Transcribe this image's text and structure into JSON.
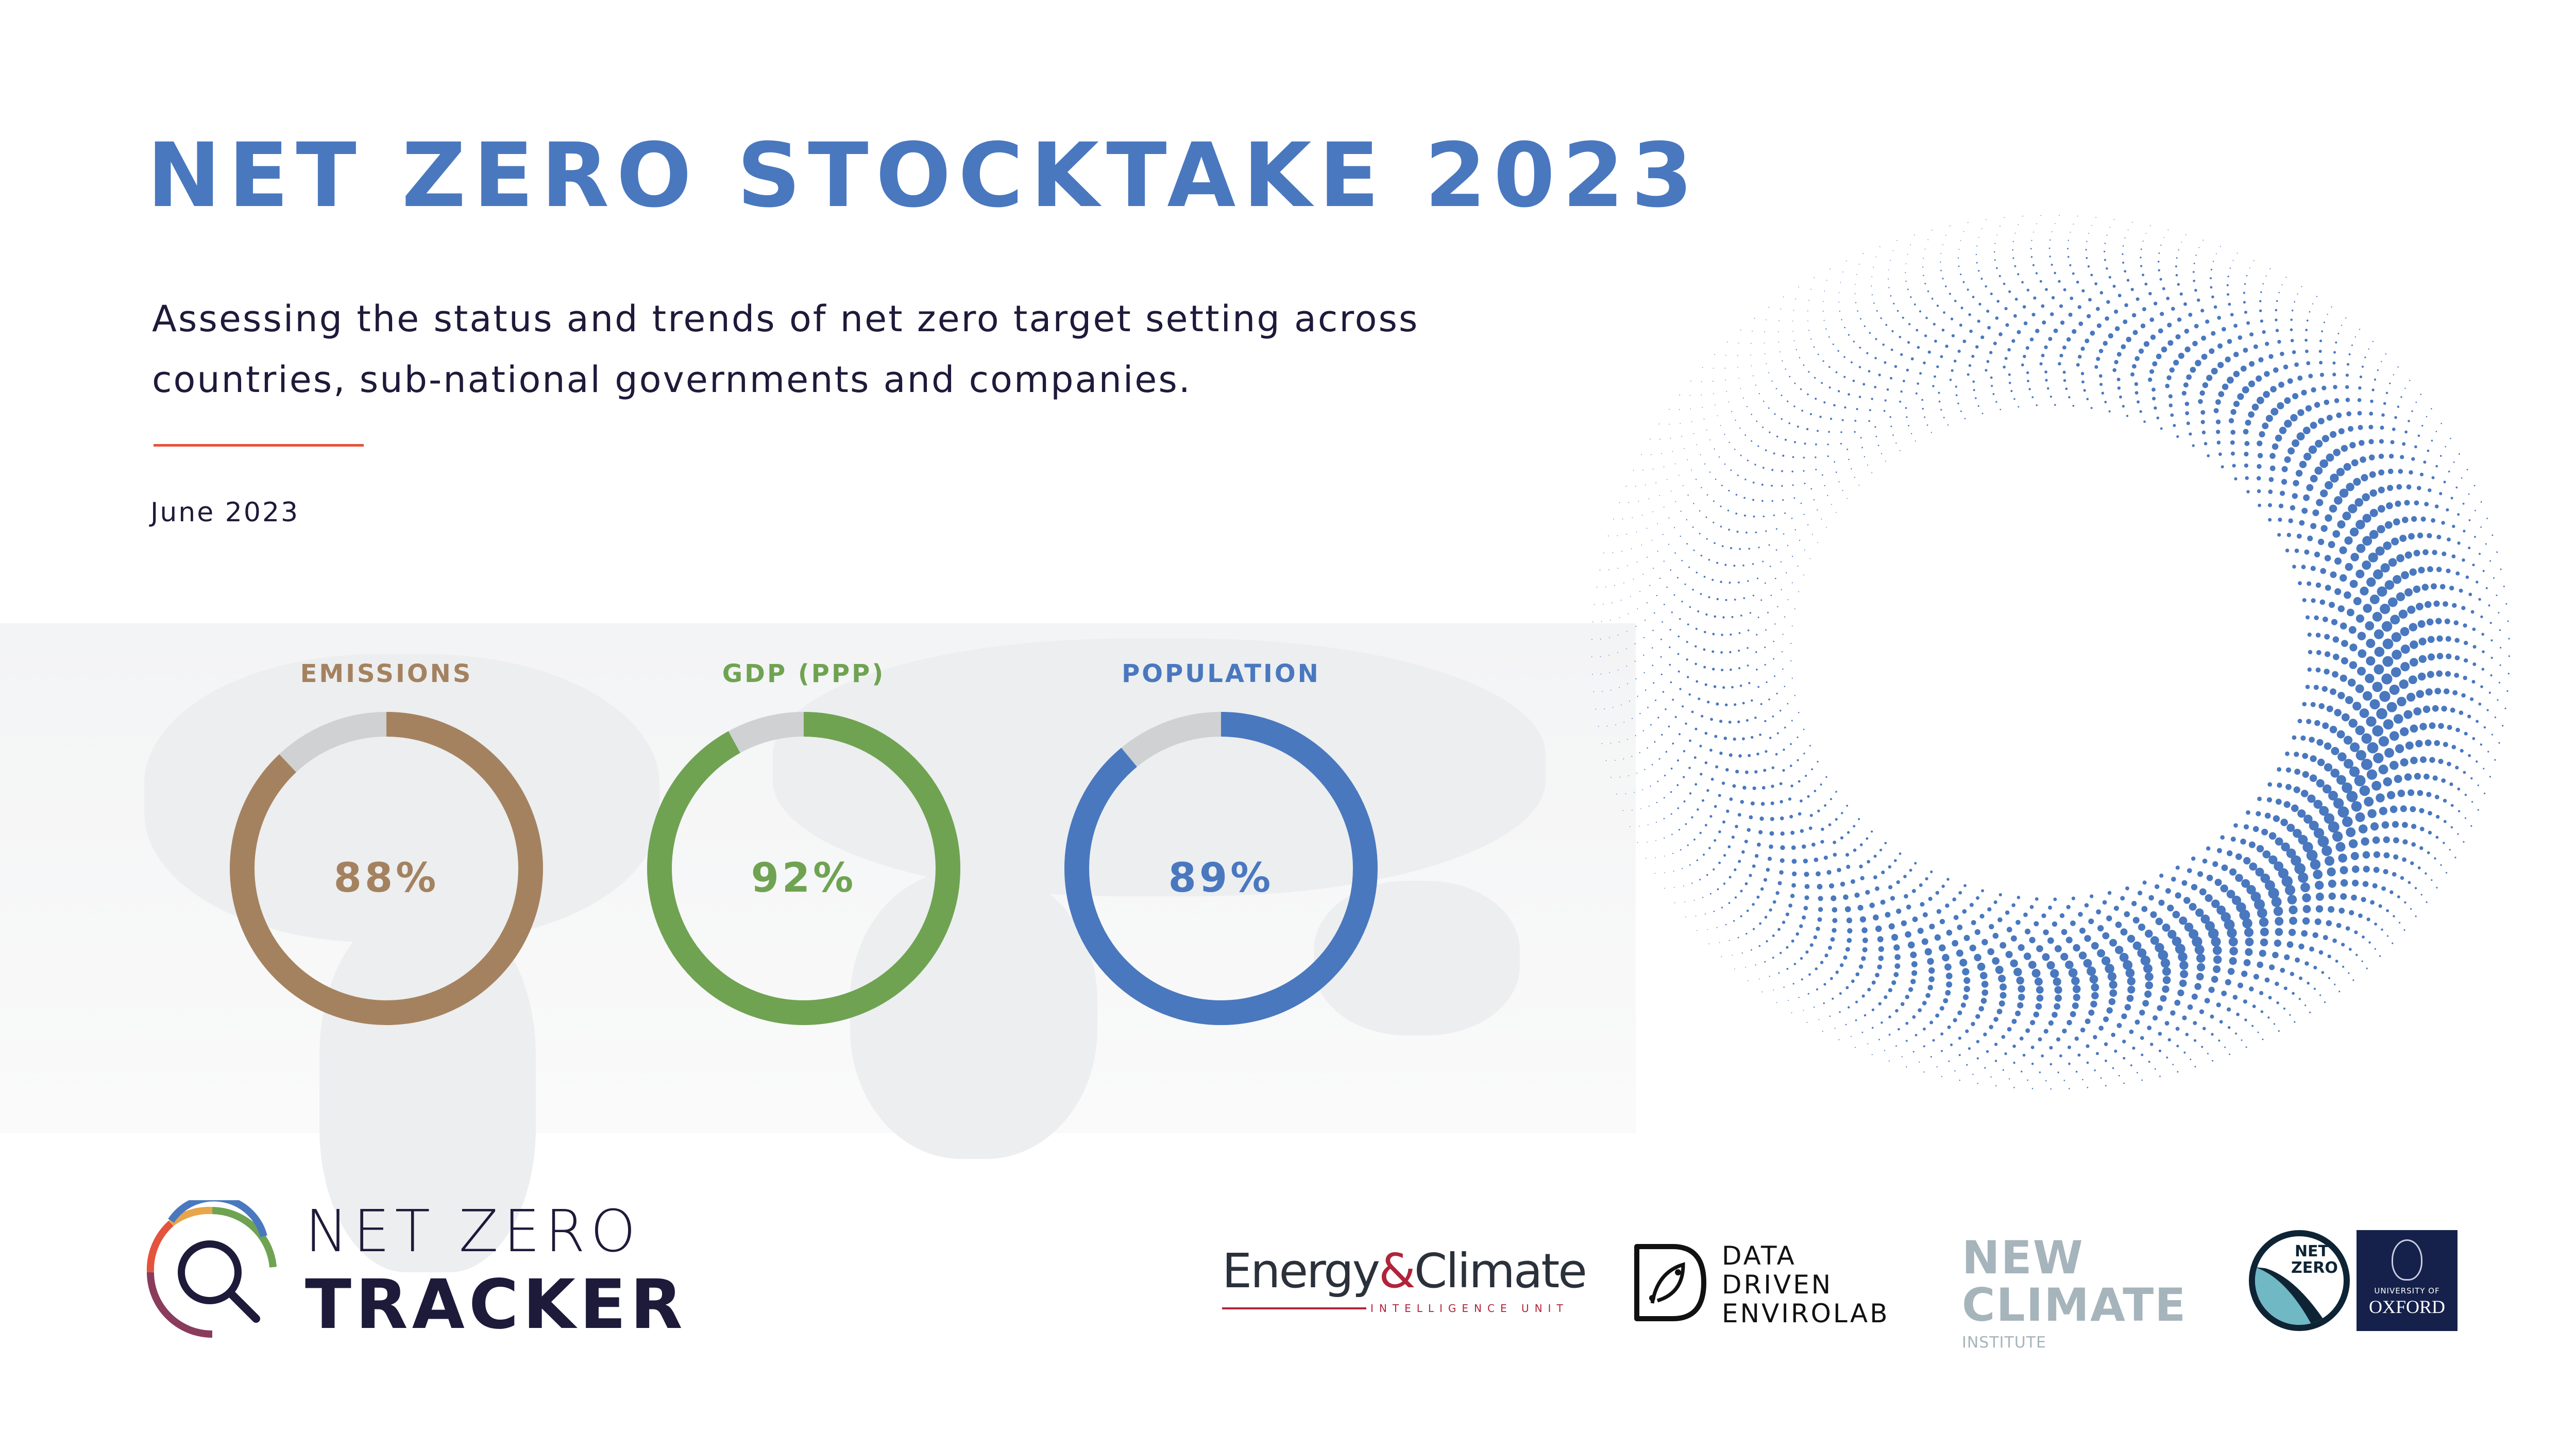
{
  "header": {
    "title": "NET ZERO STOCKTAKE 2023",
    "subtitle": "Assessing the status and trends of net zero target setting across countries, sub-national governments and companies.",
    "date": "June 2023",
    "accent_color": "#4a78bf",
    "rule_color": "#e4533c"
  },
  "donuts": [
    {
      "label": "EMISSIONS",
      "percent_text": "88%",
      "value": 88,
      "color": "#a5825f"
    },
    {
      "label": "GDP (PPP)",
      "percent_text": "92%",
      "value": 92,
      "color": "#6fa352"
    },
    {
      "label": "POPULATION",
      "percent_text": "89%",
      "value": 89,
      "color": "#4a78bf"
    }
  ],
  "donut_remainder_color": "#d0d1d3",
  "logos": {
    "nzt_line1": "NET ZERO",
    "nzt_line2": "TRACKER",
    "ec_main": "Energy",
    "ec_amp": "&",
    "ec_main2": "Climate",
    "ec_sub": "INTELLIGENCE UNIT",
    "ddl_lines": [
      "DATA",
      "DRIVEN",
      "ENVIROLAB"
    ],
    "nci_line1": "NEW",
    "nci_line2": "CLIMATE",
    "nci_sub": "INSTITUTE",
    "nz_badge": "NET ZERO",
    "ox_line1": "UNIVERSITY OF",
    "ox_line2": "OXFORD"
  }
}
